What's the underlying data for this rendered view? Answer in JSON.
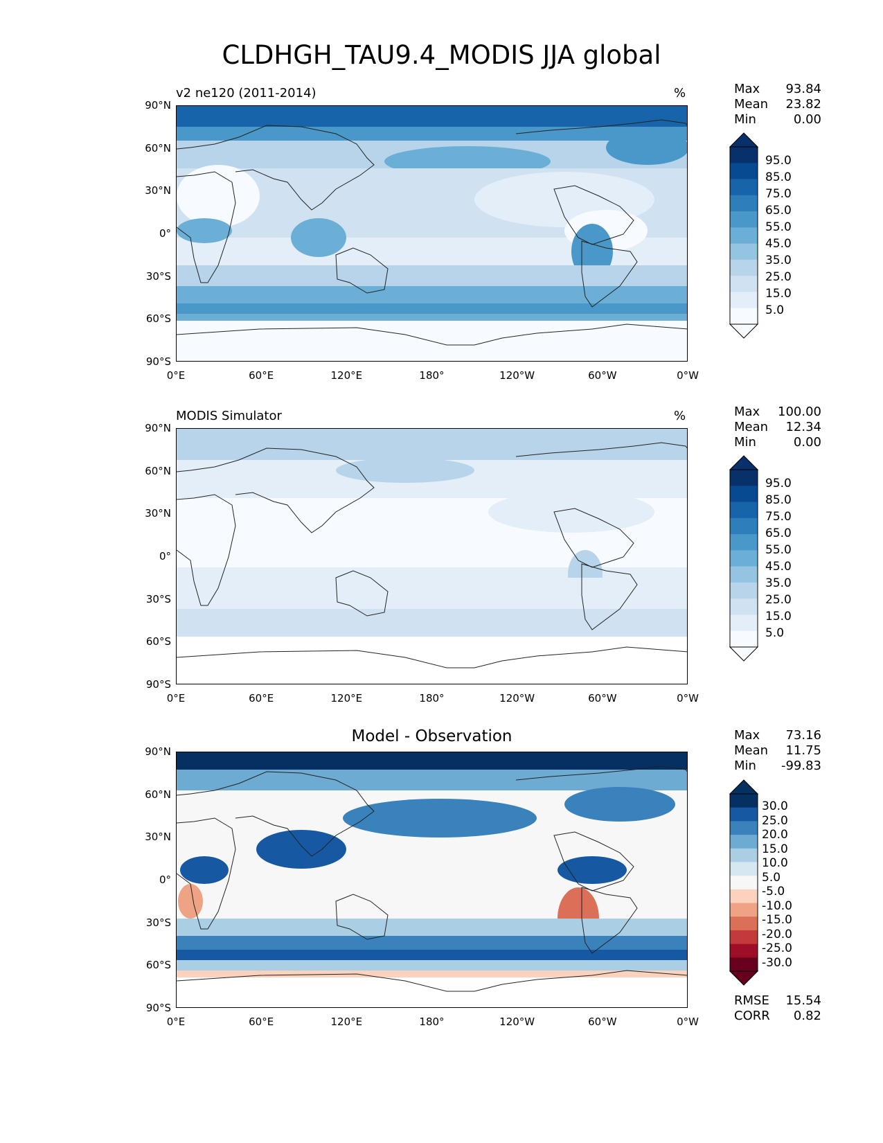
{
  "figure": {
    "title": "CLDHGH_TAU9.4_MODIS JJA global"
  },
  "colors": {
    "blues": [
      "#f7fbff",
      "#e3eef8",
      "#d0e1f2",
      "#b7d4ea",
      "#94c4df",
      "#6baed6",
      "#4a98c9",
      "#2e7ebc",
      "#1764ab",
      "#084a91",
      "#08306b"
    ],
    "diff": [
      "#67001f",
      "#9e0f27",
      "#c33a3a",
      "#dc6f58",
      "#efa385",
      "#fbd2bd",
      "#f7f7f7",
      "#d7e7f1",
      "#aacfe5",
      "#6eabd3",
      "#3a82bb",
      "#1659a2",
      "#053061"
    ]
  },
  "panels": [
    {
      "id": "model",
      "label": "v2 ne120 (2011-2014)",
      "unit": "%",
      "stats": {
        "max_label": "Max",
        "max": "93.84",
        "mean_label": "Mean",
        "mean": "23.82",
        "min_label": "Min",
        "min": "0.00"
      },
      "colorbar": {
        "palette": "blues",
        "labels": [
          "95.0",
          "85.0",
          "75.0",
          "65.0",
          "55.0",
          "45.0",
          "35.0",
          "25.0",
          "15.0",
          "5.0"
        ]
      }
    },
    {
      "id": "obs",
      "label": "MODIS Simulator",
      "unit": "%",
      "stats": {
        "max_label": "Max",
        "max": "100.00",
        "mean_label": "Mean",
        "mean": "12.34",
        "min_label": "Min",
        "min": "0.00"
      },
      "colorbar": {
        "palette": "blues",
        "labels": [
          "95.0",
          "85.0",
          "75.0",
          "65.0",
          "55.0",
          "45.0",
          "35.0",
          "25.0",
          "15.0",
          "5.0"
        ]
      }
    },
    {
      "id": "diff",
      "title": "Model - Observation",
      "stats": {
        "max_label": "Max",
        "max": "73.16",
        "mean_label": "Mean",
        "mean": "11.75",
        "min_label": "Min",
        "min": "-99.83"
      },
      "colorbar": {
        "palette": "diff",
        "labels": [
          "30.0",
          "25.0",
          "20.0",
          "15.0",
          "10.0",
          "5.0",
          "-5.0",
          "-10.0",
          "-15.0",
          "-20.0",
          "-25.0",
          "-30.0"
        ]
      },
      "metrics": {
        "rmse_label": "RMSE",
        "rmse": "15.54",
        "corr_label": "CORR",
        "corr": "0.82"
      }
    }
  ],
  "axes": {
    "lat_ticks": [
      "90°N",
      "60°N",
      "30°N",
      "0°",
      "30°S",
      "60°S",
      "90°S"
    ],
    "lon_ticks": [
      "0°E",
      "60°E",
      "120°E",
      "180°",
      "120°W",
      "60°W",
      "0°W"
    ]
  }
}
